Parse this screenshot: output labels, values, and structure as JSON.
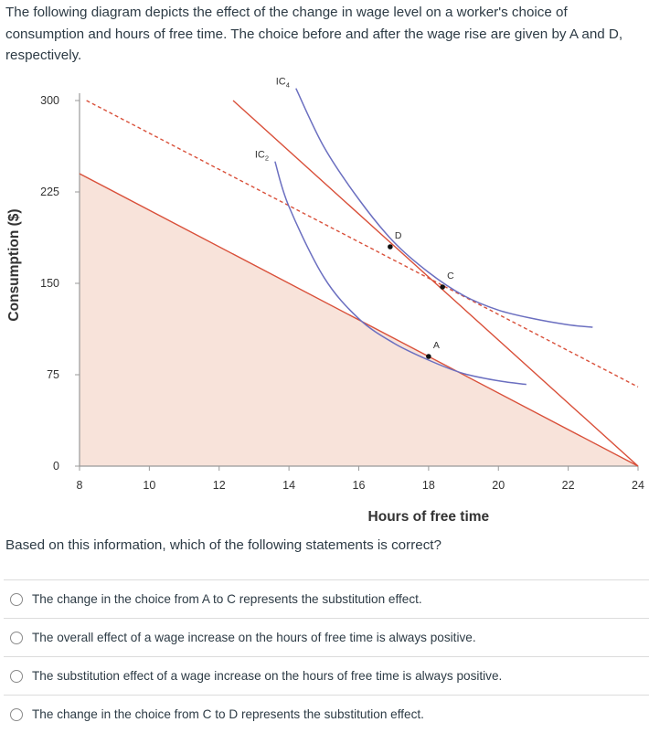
{
  "question": {
    "intro": "The following diagram depicts the effect of the change in wage level on a worker's choice of consumption and hours of free time. The choice before and after the wage rise are given by A and D, respectively.",
    "prompt": "Based on this information, which of the following statements is correct?",
    "options": [
      {
        "label": "The change in the choice from A to C represents the substitution effect."
      },
      {
        "label": "The overall effect of a wage increase on the hours of free time is always positive."
      },
      {
        "label": "The substitution effect of a wage increase on the hours of free time is always positive."
      },
      {
        "label": "The change in the choice from C to D represents the substitution effect."
      }
    ]
  },
  "chart_data": {
    "type": "line",
    "xlabel": "Hours of free time",
    "ylabel": "Consumption ($)",
    "xlim": [
      8,
      24
    ],
    "ylim": [
      0,
      300
    ],
    "x_ticks": [
      "8",
      "10",
      "12",
      "14",
      "16",
      "18",
      "20",
      "22",
      "24"
    ],
    "y_ticks": [
      "0",
      "75",
      "150",
      "225",
      "300"
    ],
    "grid": false,
    "colors": {
      "budget_line": "#d9503a",
      "dashed_line": "#d9503a",
      "indifference_curve": "#6b6fc0",
      "feasible_fill": "#f8e3da",
      "axis": "#999999",
      "point": "#111111"
    },
    "feasible_set": [
      [
        8,
        240
      ],
      [
        24,
        0
      ]
    ],
    "budget_lines": [
      {
        "points": [
          [
            8,
            240
          ],
          [
            24,
            0
          ]
        ],
        "style": "solid"
      },
      {
        "points": [
          [
            12.4,
            300
          ],
          [
            24,
            0
          ]
        ],
        "style": "solid"
      },
      {
        "points": [
          [
            8.2,
            300
          ],
          [
            24,
            65
          ]
        ],
        "style": "dashed"
      }
    ],
    "indifference_curves": [
      {
        "name": "IC",
        "subscript": "2",
        "points": [
          [
            13.6,
            250
          ],
          [
            14,
            213
          ],
          [
            15,
            155
          ],
          [
            16,
            121
          ],
          [
            17,
            101
          ],
          [
            18,
            87
          ],
          [
            19,
            76
          ],
          [
            20,
            70
          ],
          [
            20.8,
            67
          ]
        ]
      },
      {
        "name": "IC",
        "subscript": "4",
        "points": [
          [
            14.2,
            310
          ],
          [
            15,
            262
          ],
          [
            16,
            219
          ],
          [
            17,
            184
          ],
          [
            18,
            159
          ],
          [
            19,
            140
          ],
          [
            20,
            128
          ],
          [
            21,
            121
          ],
          [
            22,
            116
          ],
          [
            22.7,
            114
          ]
        ]
      }
    ],
    "points": [
      {
        "label": "A",
        "x": 18,
        "y": 90
      },
      {
        "label": "C",
        "x": 18.4,
        "y": 147
      },
      {
        "label": "D",
        "x": 16.9,
        "y": 180
      }
    ]
  }
}
